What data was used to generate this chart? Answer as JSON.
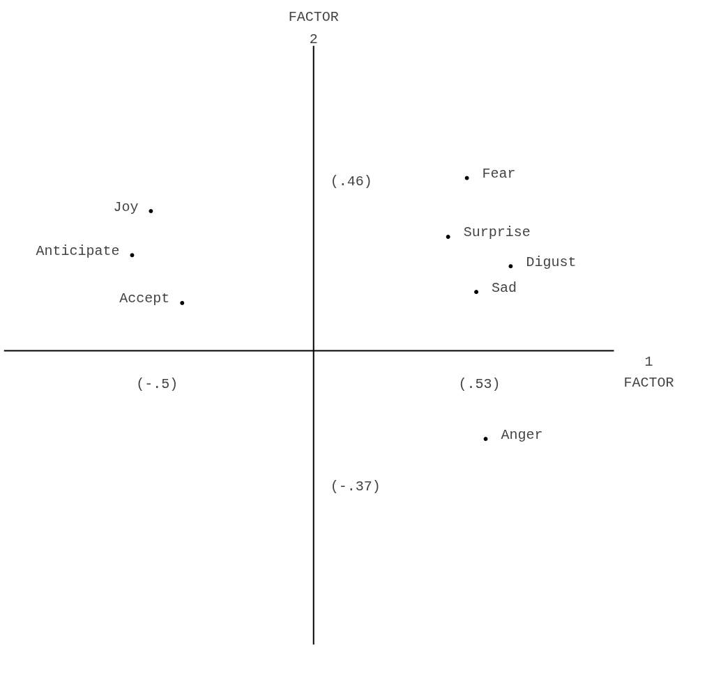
{
  "chart_data": {
    "type": "scatter",
    "xlabel": "1 FACTOR",
    "ylabel": "FACTOR 2",
    "x": [
      -0.52,
      -0.58,
      -0.42,
      0.49,
      0.43,
      0.63,
      0.52,
      0.55
    ],
    "values": [
      0.38,
      0.26,
      0.13,
      0.47,
      0.31,
      0.23,
      0.16,
      -0.24
    ],
    "color": "#000000",
    "marker": "circle",
    "grid": false,
    "xlim": [
      -0.99,
      0.96
    ],
    "ylim": [
      -0.8,
      0.83
    ],
    "xticks": [
      {
        "value": -0.5,
        "label": "(-.5)"
      },
      {
        "value": 0.53,
        "label": "(.53)"
      }
    ],
    "yticks": [
      {
        "value": 0.46,
        "label": "(.46)"
      },
      {
        "value": -0.37,
        "label": "(-.37)"
      }
    ],
    "annotations": [
      {
        "text": "Joy",
        "x": -0.52,
        "y": 0.38
      },
      {
        "text": "Anticipate",
        "x": -0.58,
        "y": 0.26
      },
      {
        "text": "Accept",
        "x": -0.42,
        "y": 0.13
      },
      {
        "text": "Fear",
        "x": 0.49,
        "y": 0.47
      },
      {
        "text": "Surprise",
        "x": 0.43,
        "y": 0.31
      },
      {
        "text": "Digust",
        "x": 0.63,
        "y": 0.23
      },
      {
        "text": "Sad",
        "x": 0.52,
        "y": 0.16
      },
      {
        "text": "Anger",
        "x": 0.55,
        "y": -0.24
      }
    ]
  }
}
